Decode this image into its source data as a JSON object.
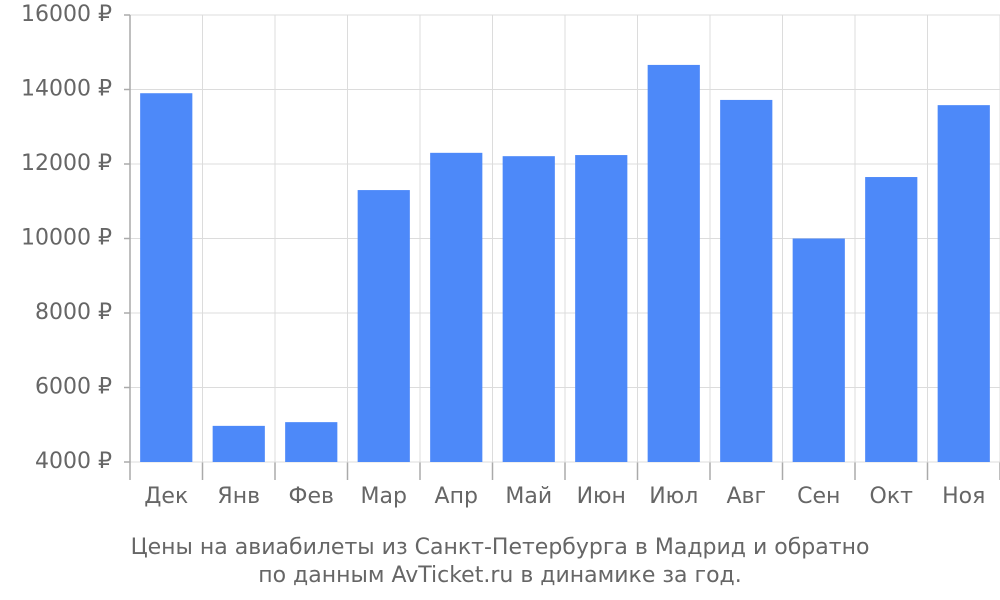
{
  "chart_data": {
    "type": "bar",
    "title": "Цены на авиабилеты из Санкт-Петербурга в Мадрид и обратно",
    "subtitle": "по данным AvTicket.ru в динамике за год.",
    "categories": [
      "Дек",
      "Янв",
      "Фев",
      "Мар",
      "Апр",
      "Май",
      "Июн",
      "Июл",
      "Авг",
      "Сен",
      "Окт",
      "Ноя"
    ],
    "values": [
      13900,
      4970,
      5070,
      11300,
      12300,
      12210,
      12240,
      14660,
      13720,
      10000,
      11650,
      13580
    ],
    "color": "#4d89f9",
    "ylim": [
      4000,
      16000
    ],
    "yticks": [
      {
        "value": 4000,
        "label": "4000 ₽"
      },
      {
        "value": 6000,
        "label": "6000 ₽"
      },
      {
        "value": 8000,
        "label": "8000 ₽"
      },
      {
        "value": 10000,
        "label": "10000 ₽"
      },
      {
        "value": 12000,
        "label": "12000 ₽"
      },
      {
        "value": 14000,
        "label": "14000 ₽"
      },
      {
        "value": 16000,
        "label": "16000 ₽"
      }
    ],
    "grid": true
  }
}
